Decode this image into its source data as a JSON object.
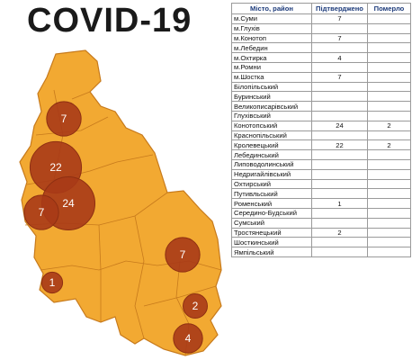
{
  "title": "COVID-19",
  "colors": {
    "region_fill": "#f2a932",
    "region_border": "#c77a1c",
    "bubble": "#a83a17",
    "bubble_dark": "#8e2f12",
    "table_header": "#1d3b7a"
  },
  "table": {
    "headers": [
      "Місто, район",
      "Підтверджено",
      "Померло"
    ],
    "rows": [
      {
        "name": "м.Суми",
        "confirmed": "7",
        "died": ""
      },
      {
        "name": "м.Глухів",
        "confirmed": "",
        "died": ""
      },
      {
        "name": "м.Конотоп",
        "confirmed": "7",
        "died": ""
      },
      {
        "name": "м.Лебедин",
        "confirmed": "",
        "died": ""
      },
      {
        "name": "м.Охтирка",
        "confirmed": "4",
        "died": ""
      },
      {
        "name": "м.Ромни",
        "confirmed": "",
        "died": ""
      },
      {
        "name": "м.Шостка",
        "confirmed": "7",
        "died": ""
      },
      {
        "name": "Білопільський",
        "confirmed": "",
        "died": ""
      },
      {
        "name": "Буринський",
        "confirmed": "",
        "died": ""
      },
      {
        "name": "Великописарівський",
        "confirmed": "",
        "died": ""
      },
      {
        "name": "Глухівський",
        "confirmed": "",
        "died": ""
      },
      {
        "name": "Конотопський",
        "confirmed": "24",
        "died": "2"
      },
      {
        "name": "Краснопільський",
        "confirmed": "",
        "died": ""
      },
      {
        "name": "Кролевецький",
        "confirmed": "22",
        "died": "2"
      },
      {
        "name": "Лебединський",
        "confirmed": "",
        "died": ""
      },
      {
        "name": "Липоводолинський",
        "confirmed": "",
        "died": ""
      },
      {
        "name": "Недригайлівський",
        "confirmed": "",
        "died": ""
      },
      {
        "name": "Охтирський",
        "confirmed": "",
        "died": ""
      },
      {
        "name": "Путивльський",
        "confirmed": "",
        "died": ""
      },
      {
        "name": "Роменський",
        "confirmed": "1",
        "died": ""
      },
      {
        "name": "Середино-Будський",
        "confirmed": "",
        "died": ""
      },
      {
        "name": "Сумський",
        "confirmed": "",
        "died": ""
      },
      {
        "name": "Тростянецький",
        "confirmed": "2",
        "died": ""
      },
      {
        "name": "Шосткинський",
        "confirmed": "",
        "died": ""
      },
      {
        "name": "Ямпільський",
        "confirmed": "",
        "died": ""
      }
    ]
  },
  "map_bubbles": [
    {
      "label": "7",
      "value": 7
    },
    {
      "label": "22",
      "value": 22
    },
    {
      "label": "24",
      "value": 24
    },
    {
      "label": "7",
      "value": 7
    },
    {
      "label": "7",
      "value": 7
    },
    {
      "label": "1",
      "value": 1
    },
    {
      "label": "2",
      "value": 2
    },
    {
      "label": "4",
      "value": 4
    }
  ]
}
